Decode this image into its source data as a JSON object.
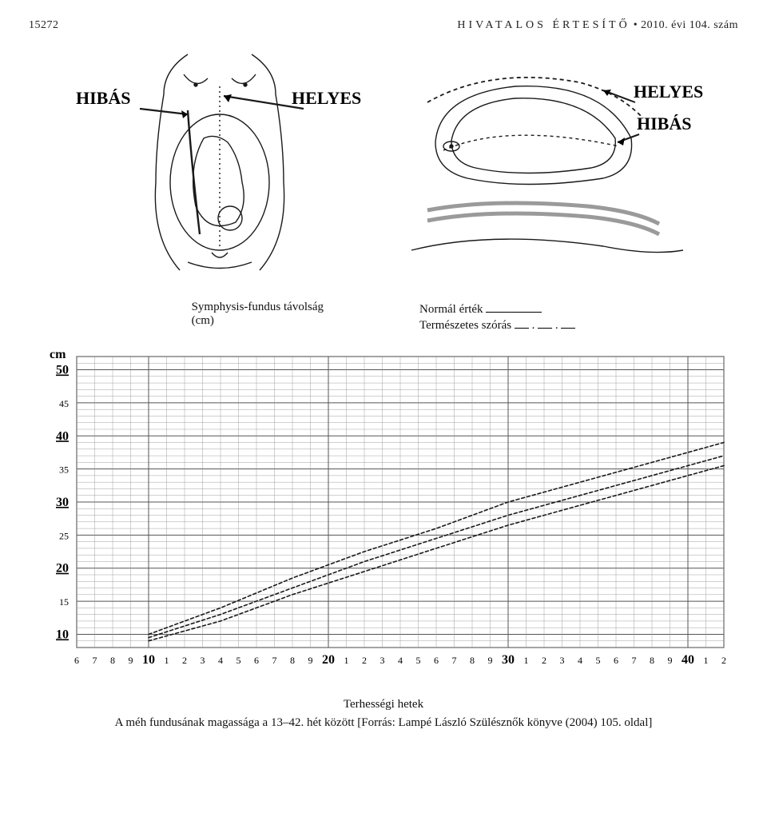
{
  "header": {
    "page_number": "15272",
    "title": "HIVATALOS ÉRTESÍTŐ",
    "bullet": "•",
    "year": "2010. évi 104. szám"
  },
  "labels": {
    "hibas": "HIBÁS",
    "helyes": "HELYES"
  },
  "measure": {
    "left_line1": "Symphysis-fundus távolság",
    "left_line2": "(cm)",
    "right_line1_prefix": "Normál érték",
    "right_line2_prefix": "Természetes szórás"
  },
  "chart": {
    "y_unit": "cm",
    "y_ticks": [
      10,
      15,
      20,
      25,
      30,
      35,
      40,
      45,
      50
    ],
    "x_ticks": [
      6,
      7,
      8,
      9,
      10,
      11,
      12,
      13,
      14,
      15,
      16,
      17,
      18,
      19,
      20,
      21,
      22,
      23,
      24,
      25,
      26,
      27,
      28,
      29,
      30,
      31,
      32,
      33,
      34,
      35,
      36,
      37,
      38,
      39,
      40,
      41,
      42
    ],
    "x_bold_ticks": [
      10,
      20,
      30,
      40
    ],
    "curves": {
      "upper": [
        [
          10,
          10
        ],
        [
          14,
          14
        ],
        [
          18,
          18.5
        ],
        [
          22,
          22.5
        ],
        [
          26,
          26
        ],
        [
          30,
          30
        ],
        [
          34,
          33
        ],
        [
          38,
          36
        ],
        [
          42,
          39
        ]
      ],
      "middle": [
        [
          10,
          9.5
        ],
        [
          14,
          13
        ],
        [
          18,
          17
        ],
        [
          22,
          21
        ],
        [
          26,
          24.5
        ],
        [
          30,
          28
        ],
        [
          34,
          31
        ],
        [
          38,
          34
        ],
        [
          42,
          37
        ]
      ],
      "lower": [
        [
          10,
          9
        ],
        [
          14,
          12
        ],
        [
          18,
          16
        ],
        [
          22,
          19.5
        ],
        [
          26,
          23
        ],
        [
          30,
          26.5
        ],
        [
          34,
          29.5
        ],
        [
          38,
          32.5
        ],
        [
          42,
          35.5
        ]
      ]
    },
    "style": {
      "label_fontsize": 16,
      "label_font": "'Comic Sans MS','Segoe Print',cursive",
      "tick_fontsize": 12,
      "grid_color": "#8a8a8a",
      "major_grid_color": "#555555",
      "curve_color": "#1a1a1a",
      "curve_width": 1.6,
      "curve_dash": "4 3",
      "bg": "#ffffff"
    },
    "xlim": [
      6,
      42
    ],
    "ylim": [
      8,
      52
    ]
  },
  "anatomy_style": {
    "stroke": "#1a1a1a",
    "stroke_width": 1.4,
    "dash": "3 3",
    "arrow_color": "#000000",
    "bg": "#ffffff"
  },
  "footer": {
    "line1": "Terhességi hetek",
    "line2": "A méh fundusának magassága a 13–42. hét között [Forrás: Lampé László Szülésznők könyve (2004) 105. oldal]"
  }
}
